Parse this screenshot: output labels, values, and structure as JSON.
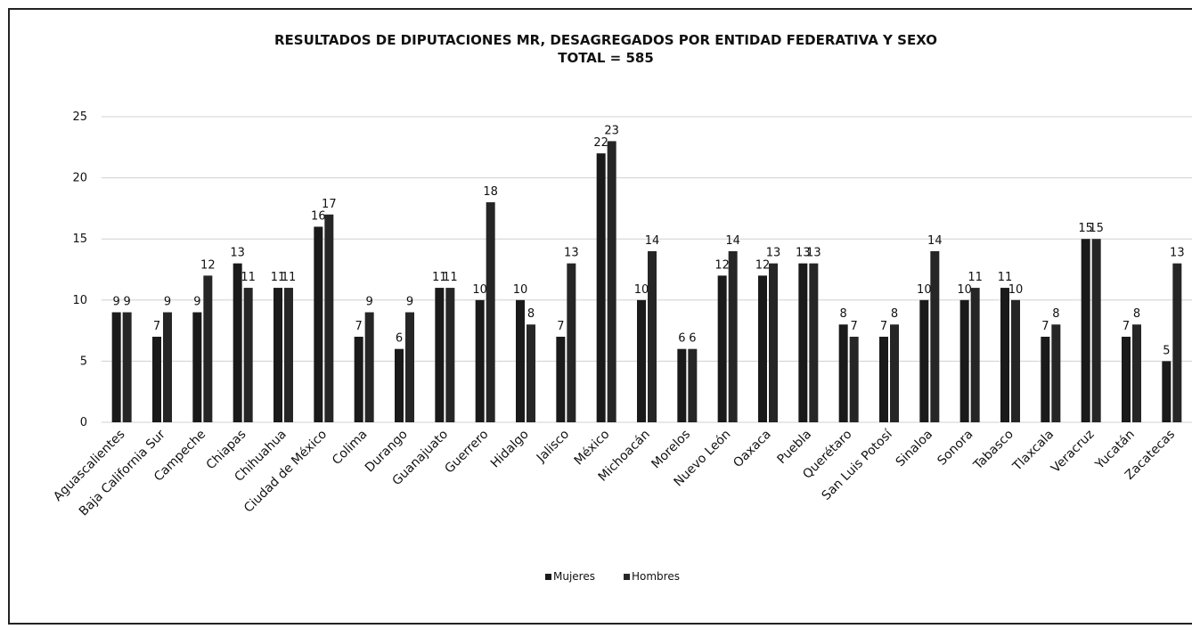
{
  "chart_data": {
    "type": "bar",
    "title": "RESULTADOS DE DIPUTACIONES MR, DESAGREGADOS POR ENTIDAD FEDERATIVA Y SEXO",
    "subtitle": "TOTAL = 585",
    "categories": [
      "Aguascalientes",
      "Baja California Sur",
      "Campeche",
      "Chiapas",
      "Chihuahua",
      "Ciudad de México",
      "Colima",
      "Durango",
      "Guanajuato",
      "Guerrero",
      "Hidalgo",
      "Jalisco",
      "México",
      "Michoacán",
      "Morelos",
      "Nuevo León",
      "Oaxaca",
      "Puebla",
      "Querétaro",
      "San Luis Potosí",
      "Sinaloa",
      "Sonora",
      "Tabasco",
      "Tlaxcala",
      "Veracruz",
      "Yucatán",
      "Zacatecas"
    ],
    "series": [
      {
        "name": "Mujeres",
        "color": "#1a1a1a",
        "values": [
          9,
          7,
          9,
          13,
          11,
          16,
          7,
          6,
          11,
          10,
          10,
          7,
          22,
          10,
          6,
          12,
          12,
          13,
          8,
          7,
          10,
          10,
          11,
          7,
          15,
          7,
          5
        ]
      },
      {
        "name": "Hombres",
        "color": "#262626",
        "values": [
          9,
          9,
          12,
          11,
          11,
          17,
          9,
          9,
          11,
          18,
          8,
          13,
          23,
          14,
          6,
          14,
          13,
          13,
          7,
          8,
          14,
          11,
          10,
          8,
          15,
          8,
          13
        ]
      }
    ],
    "ylim": [
      0,
      25
    ],
    "yticks": [
      0,
      5,
      10,
      15,
      20,
      25
    ],
    "grid": true,
    "legend": "bottom"
  }
}
